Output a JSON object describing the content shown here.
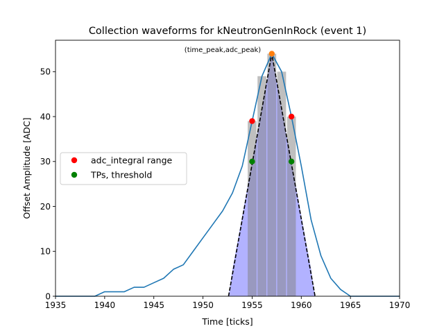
{
  "chart_data": {
    "type": "line",
    "title": "Collection waveforms for kNeutronGenInRock (event 1)",
    "xlabel": "Time [ticks]",
    "ylabel": "Offset Amplitude [ADC]",
    "xlim": [
      1935,
      1970
    ],
    "ylim": [
      0,
      57
    ],
    "xticks": [
      1935,
      1940,
      1945,
      1950,
      1955,
      1960,
      1965,
      1970
    ],
    "yticks": [
      0,
      10,
      20,
      30,
      40,
      50
    ],
    "grid": false,
    "legend_position": "center-left",
    "waveform": {
      "color": "#1f77b4",
      "x": [
        1935,
        1936,
        1937,
        1938,
        1939,
        1940,
        1941,
        1942,
        1943,
        1944,
        1945,
        1946,
        1947,
        1948,
        1949,
        1950,
        1951,
        1952,
        1953,
        1954,
        1955,
        1956,
        1957,
        1958,
        1959,
        1960,
        1961,
        1962,
        1963,
        1964,
        1965,
        1966,
        1967,
        1968,
        1969,
        1970
      ],
      "y": [
        0,
        0,
        0,
        0,
        0,
        1,
        1,
        1,
        2,
        2,
        3,
        4,
        6,
        7,
        10,
        13,
        16,
        19,
        23,
        29,
        39,
        49,
        54,
        50,
        40,
        29,
        17,
        9,
        4,
        1.5,
        0,
        0,
        0,
        0,
        0,
        0
      ]
    },
    "integral_bars": {
      "color": "#808080",
      "x": [
        1955,
        1956,
        1957,
        1958,
        1959
      ],
      "y": [
        39,
        49,
        54,
        50,
        40
      ]
    },
    "fill_region": {
      "color": "#aaaaff",
      "x": [
        1952.6,
        1953,
        1954,
        1955,
        1956,
        1957,
        1958,
        1959,
        1960,
        1961,
        1961.4
      ],
      "y": [
        0,
        6,
        18,
        30,
        42,
        54,
        42,
        30,
        18,
        6,
        0
      ]
    },
    "triangle": {
      "color": "#000000",
      "x": [
        1952.6,
        1957,
        1961.4
      ],
      "y": [
        0,
        54,
        0
      ]
    },
    "peak_marker": {
      "x": 1957,
      "y": 54,
      "color": "#ff7f0e"
    },
    "peak_annotation": {
      "text": "(time_peak,adc_peak)",
      "x": 1957,
      "y": 54
    },
    "series": [
      {
        "name": "adc_integral range",
        "color": "#ff0000",
        "x": [
          1955,
          1959
        ],
        "y": [
          39,
          40
        ]
      },
      {
        "name": "TPs, threshold",
        "color": "#008000",
        "x": [
          1955,
          1959
        ],
        "y": [
          30,
          30
        ]
      }
    ]
  }
}
